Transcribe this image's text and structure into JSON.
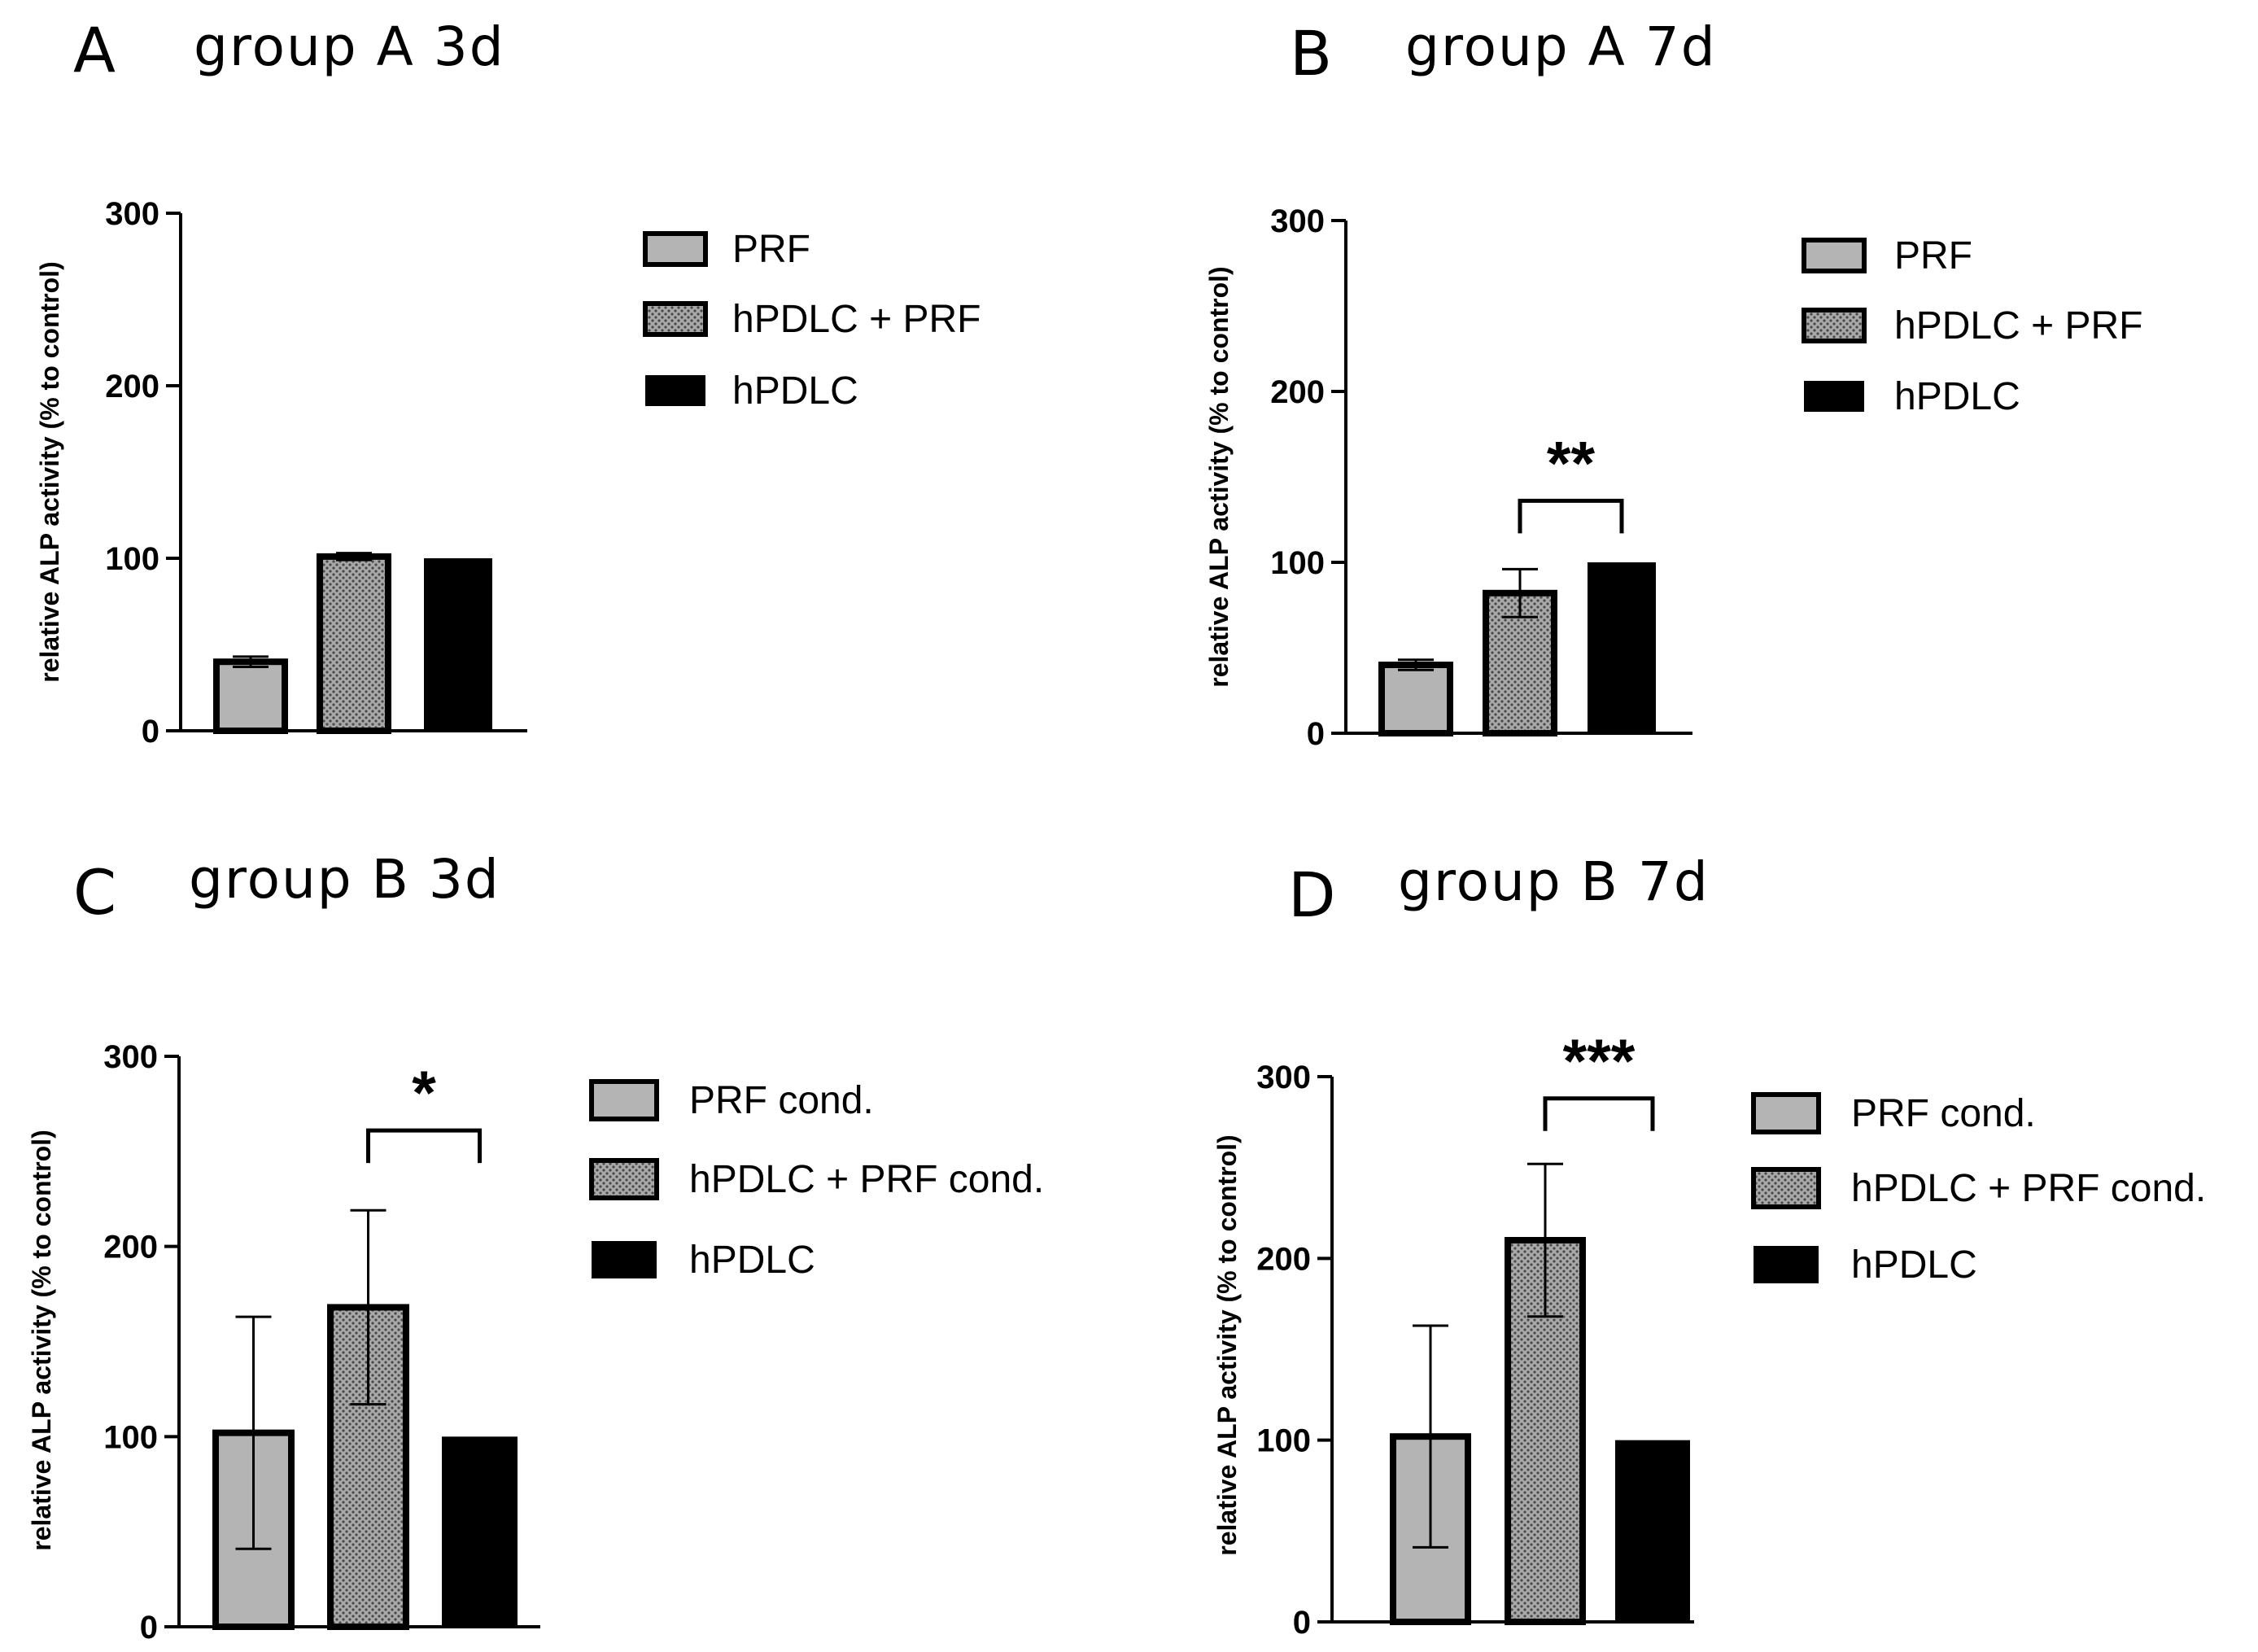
{
  "colors": {
    "gray_bar": "#B4B4B4",
    "dotted_bar": "#9E9E9E",
    "black_bar": "#000000",
    "axis": "#000000"
  },
  "chart_data": [
    {
      "type": "bar",
      "letter": "A",
      "title": "group A 3d",
      "ylabel": "relative ALP activity (% to control)",
      "ylim": [
        0,
        300
      ],
      "yticks": [
        0,
        100,
        200,
        300
      ],
      "categories": [
        "PRF",
        "hPDLC + PRF",
        "hPDLC"
      ],
      "values": [
        40,
        101,
        100
      ],
      "errors": [
        3,
        2,
        0
      ],
      "styles": [
        "gray",
        "dotted",
        "black"
      ],
      "legend": [
        "PRF",
        "hPDLC + PRF",
        "hPDLC"
      ],
      "significance": null
    },
    {
      "type": "bar",
      "letter": "B",
      "title": "group A 7d",
      "ylabel": "relative ALP activity (% to control)",
      "ylim": [
        0,
        300
      ],
      "yticks": [
        0,
        100,
        200,
        300
      ],
      "categories": [
        "PRF",
        "hPDLC + PRF",
        "hPDLC"
      ],
      "values": [
        40,
        82,
        100
      ],
      "errors": [
        3,
        14,
        0
      ],
      "styles": [
        "gray",
        "dotted",
        "black"
      ],
      "legend": [
        "PRF",
        "hPDLC + PRF",
        "hPDLC"
      ],
      "significance": {
        "label": "**",
        "from": 1,
        "to": 2,
        "y": 136
      }
    },
    {
      "type": "bar",
      "letter": "C",
      "title": "group B 3d",
      "ylabel": "relative ALP activity (% to control)",
      "ylim": [
        0,
        300
      ],
      "yticks": [
        0,
        100,
        200,
        300
      ],
      "categories": [
        "PRF cond.",
        "hPDLC + PRF cond.",
        "hPDLC"
      ],
      "values": [
        102,
        168,
        100
      ],
      "errors": [
        61,
        51,
        0
      ],
      "styles": [
        "gray",
        "dotted",
        "black"
      ],
      "legend": [
        "PRF cond.",
        "hPDLC + PRF cond.",
        "hPDLC"
      ],
      "significance": {
        "label": "*",
        "from": 1,
        "to": 2,
        "y": 261
      }
    },
    {
      "type": "bar",
      "letter": "D",
      "title": "group B 7d",
      "ylabel": "relative ALP activity (% to control)",
      "ylim": [
        0,
        300
      ],
      "yticks": [
        0,
        100,
        200,
        300
      ],
      "categories": [
        "PRF cond.",
        "hPDLC + PRF cond.",
        "hPDLC"
      ],
      "values": [
        102,
        210,
        100
      ],
      "errors": [
        61,
        42,
        0
      ],
      "styles": [
        "gray",
        "dotted",
        "black"
      ],
      "legend": [
        "PRF cond.",
        "hPDLC + PRF cond.",
        "hPDLC"
      ],
      "significance": {
        "label": "***",
        "from": 1,
        "to": 2,
        "y": 288
      }
    }
  ]
}
